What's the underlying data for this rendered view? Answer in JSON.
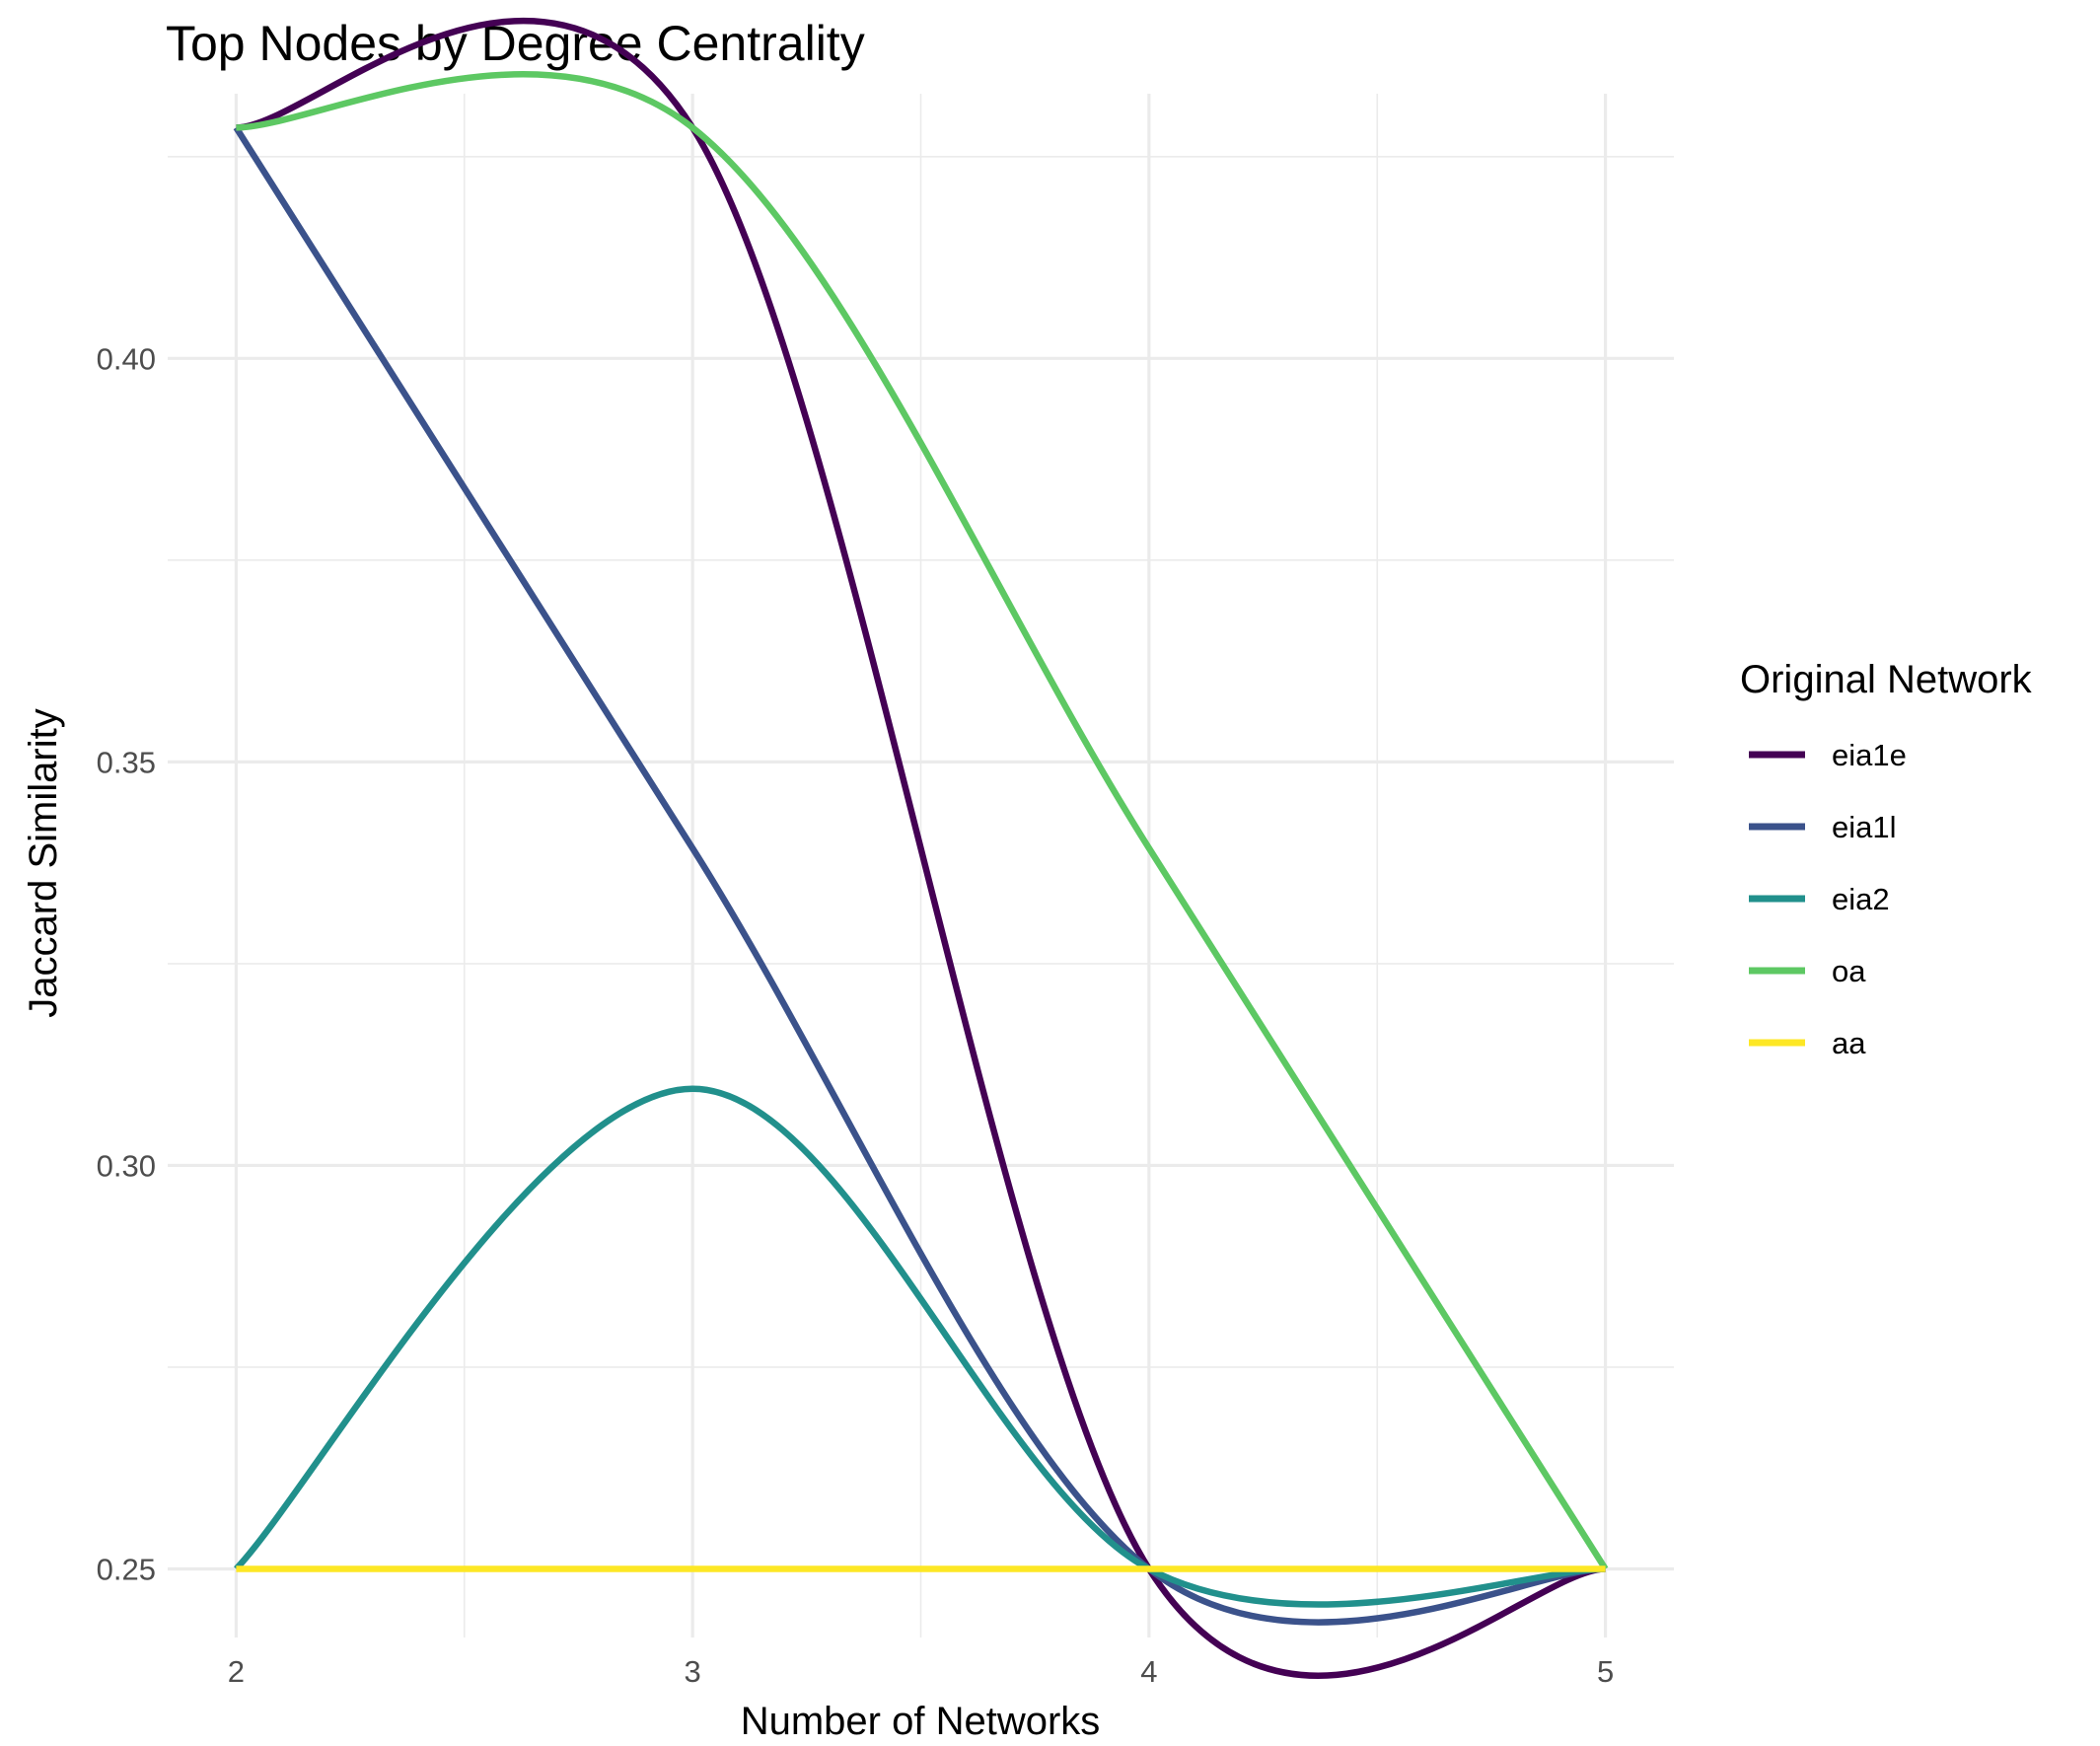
{
  "chart_data": {
    "type": "line",
    "title": "Top Nodes by Degree Centrality",
    "xlabel": "Number of Networks",
    "ylabel": "Jaccard Similarity",
    "x": [
      2,
      3,
      4,
      5
    ],
    "xticks": [
      2,
      3,
      4,
      5
    ],
    "xtick_labels": [
      "2",
      "3",
      "4",
      "5"
    ],
    "yticks": [
      0.25,
      0.3,
      0.35,
      0.4
    ],
    "ytick_labels": [
      "0.25",
      "0.30",
      "0.35",
      "0.40"
    ],
    "xlim": [
      1.85,
      5.15
    ],
    "ylim": [
      0.2415,
      0.4328
    ],
    "grid": true,
    "legend_position": "right",
    "legend_title": "Original Network",
    "series": [
      {
        "name": "eia1e",
        "color": "#440154",
        "values": [
          0.4286,
          0.4286,
          0.25,
          0.25
        ]
      },
      {
        "name": "eia1l",
        "color": "#3B528B",
        "values": [
          0.4286,
          0.3393,
          0.25,
          0.25
        ]
      },
      {
        "name": "eia2",
        "color": "#21908C",
        "values": [
          0.25,
          0.3095,
          0.25,
          0.25
        ]
      },
      {
        "name": "oa",
        "color": "#5DC863",
        "values": [
          0.4286,
          0.4286,
          0.3393,
          0.25
        ]
      },
      {
        "name": "aa",
        "color": "#FDE725",
        "values": [
          0.25,
          0.25,
          0.25,
          0.25
        ]
      }
    ]
  }
}
